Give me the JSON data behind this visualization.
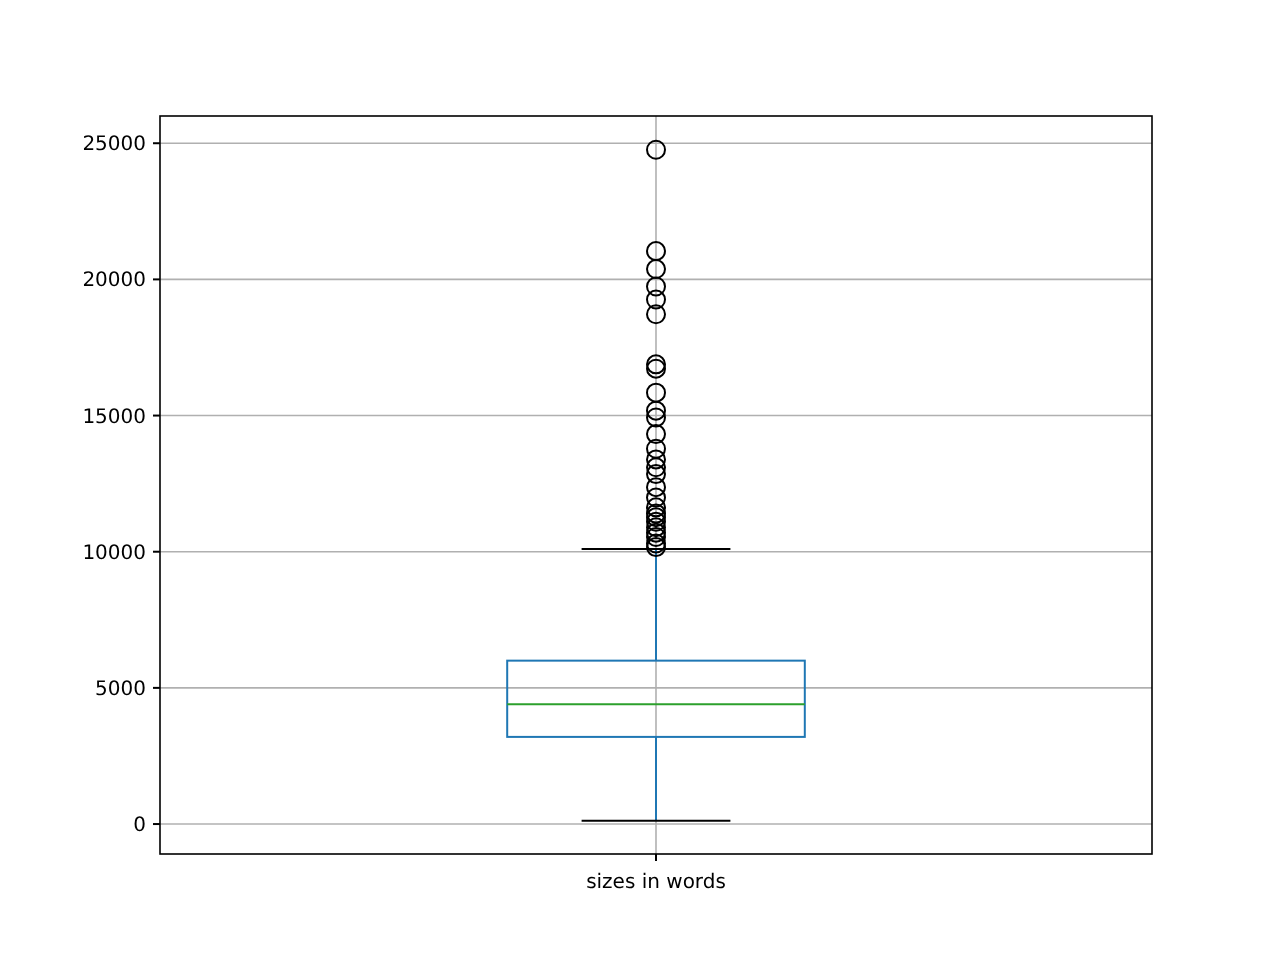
{
  "chart_data": {
    "type": "box",
    "categories": [
      "sizes in words"
    ],
    "boxes": [
      {
        "low": 120,
        "q1": 3200,
        "median": 4400,
        "q3": 6000,
        "high": 10100,
        "outliers": [
          24760,
          21040,
          20380,
          19740,
          19260,
          18720,
          16880,
          16720,
          15840,
          15180,
          14930,
          14320,
          13780,
          13390,
          13100,
          12850,
          12370,
          11990,
          11630,
          11400,
          11270,
          11100,
          10900,
          10700,
          10540,
          10300,
          10170
        ]
      }
    ],
    "ylim": [
      -1100,
      26000
    ],
    "yticks": [
      0,
      5000,
      10000,
      15000,
      20000,
      25000
    ],
    "grid": true,
    "color": "#1f77b4"
  }
}
